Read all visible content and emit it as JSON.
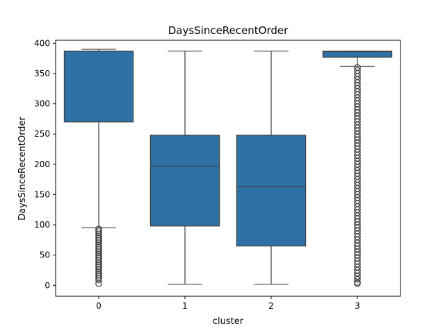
{
  "chart_data": {
    "type": "box",
    "title": "DaysSinceRecentOrder",
    "xlabel": "cluster",
    "ylabel": "DaysSinceRecentOrder",
    "categories": [
      "0",
      "1",
      "2",
      "3"
    ],
    "ylim": [
      -18,
      405
    ],
    "yticks": [
      0,
      50,
      100,
      150,
      200,
      250,
      300,
      350,
      400
    ],
    "grid": false,
    "color": "#2e71a5",
    "edge_color": "#3d3d3d",
    "boxes": [
      {
        "category": "0",
        "whisker_low": 95,
        "q1": 270,
        "median": 387,
        "q3": 387,
        "whisker_high": 390,
        "outliers": [
          93,
          90,
          87,
          84,
          81,
          78,
          75,
          72,
          69,
          66,
          63,
          60,
          57,
          54,
          51,
          48,
          45,
          42,
          39,
          36,
          33,
          30,
          27,
          24,
          21,
          18,
          15,
          12,
          9,
          3
        ]
      },
      {
        "category": "1",
        "whisker_low": 2,
        "q1": 98,
        "median": 197,
        "q3": 248,
        "whisker_high": 387,
        "outliers": []
      },
      {
        "category": "2",
        "whisker_low": 2,
        "q1": 65,
        "median": 163,
        "q3": 248,
        "whisker_high": 387,
        "outliers": []
      },
      {
        "category": "3",
        "whisker_low": 362,
        "q1": 377,
        "median": 386,
        "q3": 387,
        "whisker_high": 387,
        "outliers": [
          360,
          355,
          350,
          345,
          340,
          335,
          330,
          325,
          320,
          315,
          310,
          305,
          300,
          295,
          290,
          285,
          280,
          275,
          270,
          265,
          260,
          255,
          250,
          245,
          240,
          235,
          230,
          225,
          220,
          215,
          210,
          205,
          200,
          195,
          190,
          185,
          180,
          175,
          170,
          165,
          160,
          155,
          150,
          145,
          140,
          135,
          130,
          125,
          120,
          115,
          110,
          105,
          100,
          95,
          90,
          85,
          80,
          75,
          70,
          65,
          60,
          55,
          50,
          45,
          40,
          35,
          30,
          25,
          20,
          15,
          10,
          5,
          3
        ]
      }
    ]
  }
}
